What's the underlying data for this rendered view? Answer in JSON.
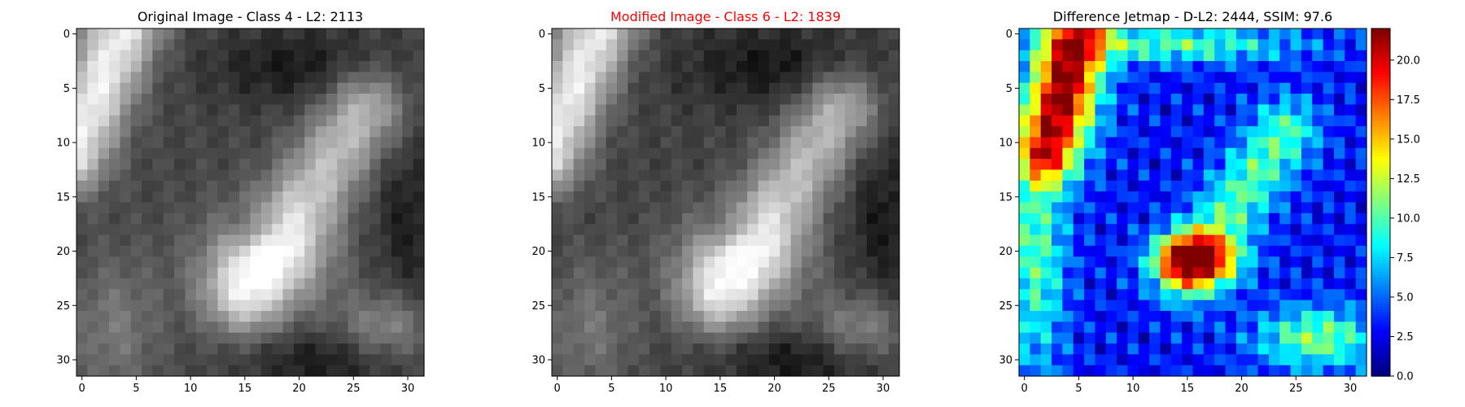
{
  "figure": {
    "background": "#ffffff"
  },
  "chart_data": [
    {
      "type": "heatmap",
      "title": "Original Image - Class 4 - L2: 2113",
      "title_color": "#000000",
      "colormap": "gray",
      "xlim": [
        -0.5,
        31.5
      ],
      "ylim": [
        31.5,
        -0.5
      ],
      "xticks": [
        0,
        5,
        10,
        15,
        20,
        25,
        30
      ],
      "yticks": [
        0,
        5,
        10,
        15,
        20,
        25,
        30
      ],
      "grid_size": [
        32,
        32
      ],
      "value_range": [
        0,
        255
      ]
    },
    {
      "type": "heatmap",
      "title": "Modified Image - Class 6 - L2: 1839",
      "title_color": "#ff0000",
      "colormap": "gray",
      "xlim": [
        -0.5,
        31.5
      ],
      "ylim": [
        31.5,
        -0.5
      ],
      "xticks": [
        0,
        5,
        10,
        15,
        20,
        25,
        30
      ],
      "yticks": [
        0,
        5,
        10,
        15,
        20,
        25,
        30
      ],
      "grid_size": [
        32,
        32
      ],
      "value_range": [
        0,
        255
      ]
    },
    {
      "type": "heatmap",
      "title": "Difference Jetmap - D-L2: 2444, SSIM: 97.6",
      "title_color": "#000000",
      "colormap": "jet",
      "xlim": [
        -0.5,
        31.5
      ],
      "ylim": [
        31.5,
        -0.5
      ],
      "xticks": [
        0,
        5,
        10,
        15,
        20,
        25,
        30
      ],
      "yticks": [
        0,
        5,
        10,
        15,
        20,
        25,
        30
      ],
      "grid_size": [
        32,
        32
      ],
      "colorbar": {
        "range": [
          0,
          22
        ],
        "ticks": [
          0.0,
          2.5,
          5.0,
          7.5,
          10.0,
          12.5,
          15.0,
          17.5,
          20.0
        ],
        "tick_labels": [
          "0.0",
          "2.5",
          "5.0",
          "7.5",
          "10.0",
          "12.5",
          "15.0",
          "17.5",
          "20.0"
        ],
        "placement": "right"
      }
    }
  ]
}
